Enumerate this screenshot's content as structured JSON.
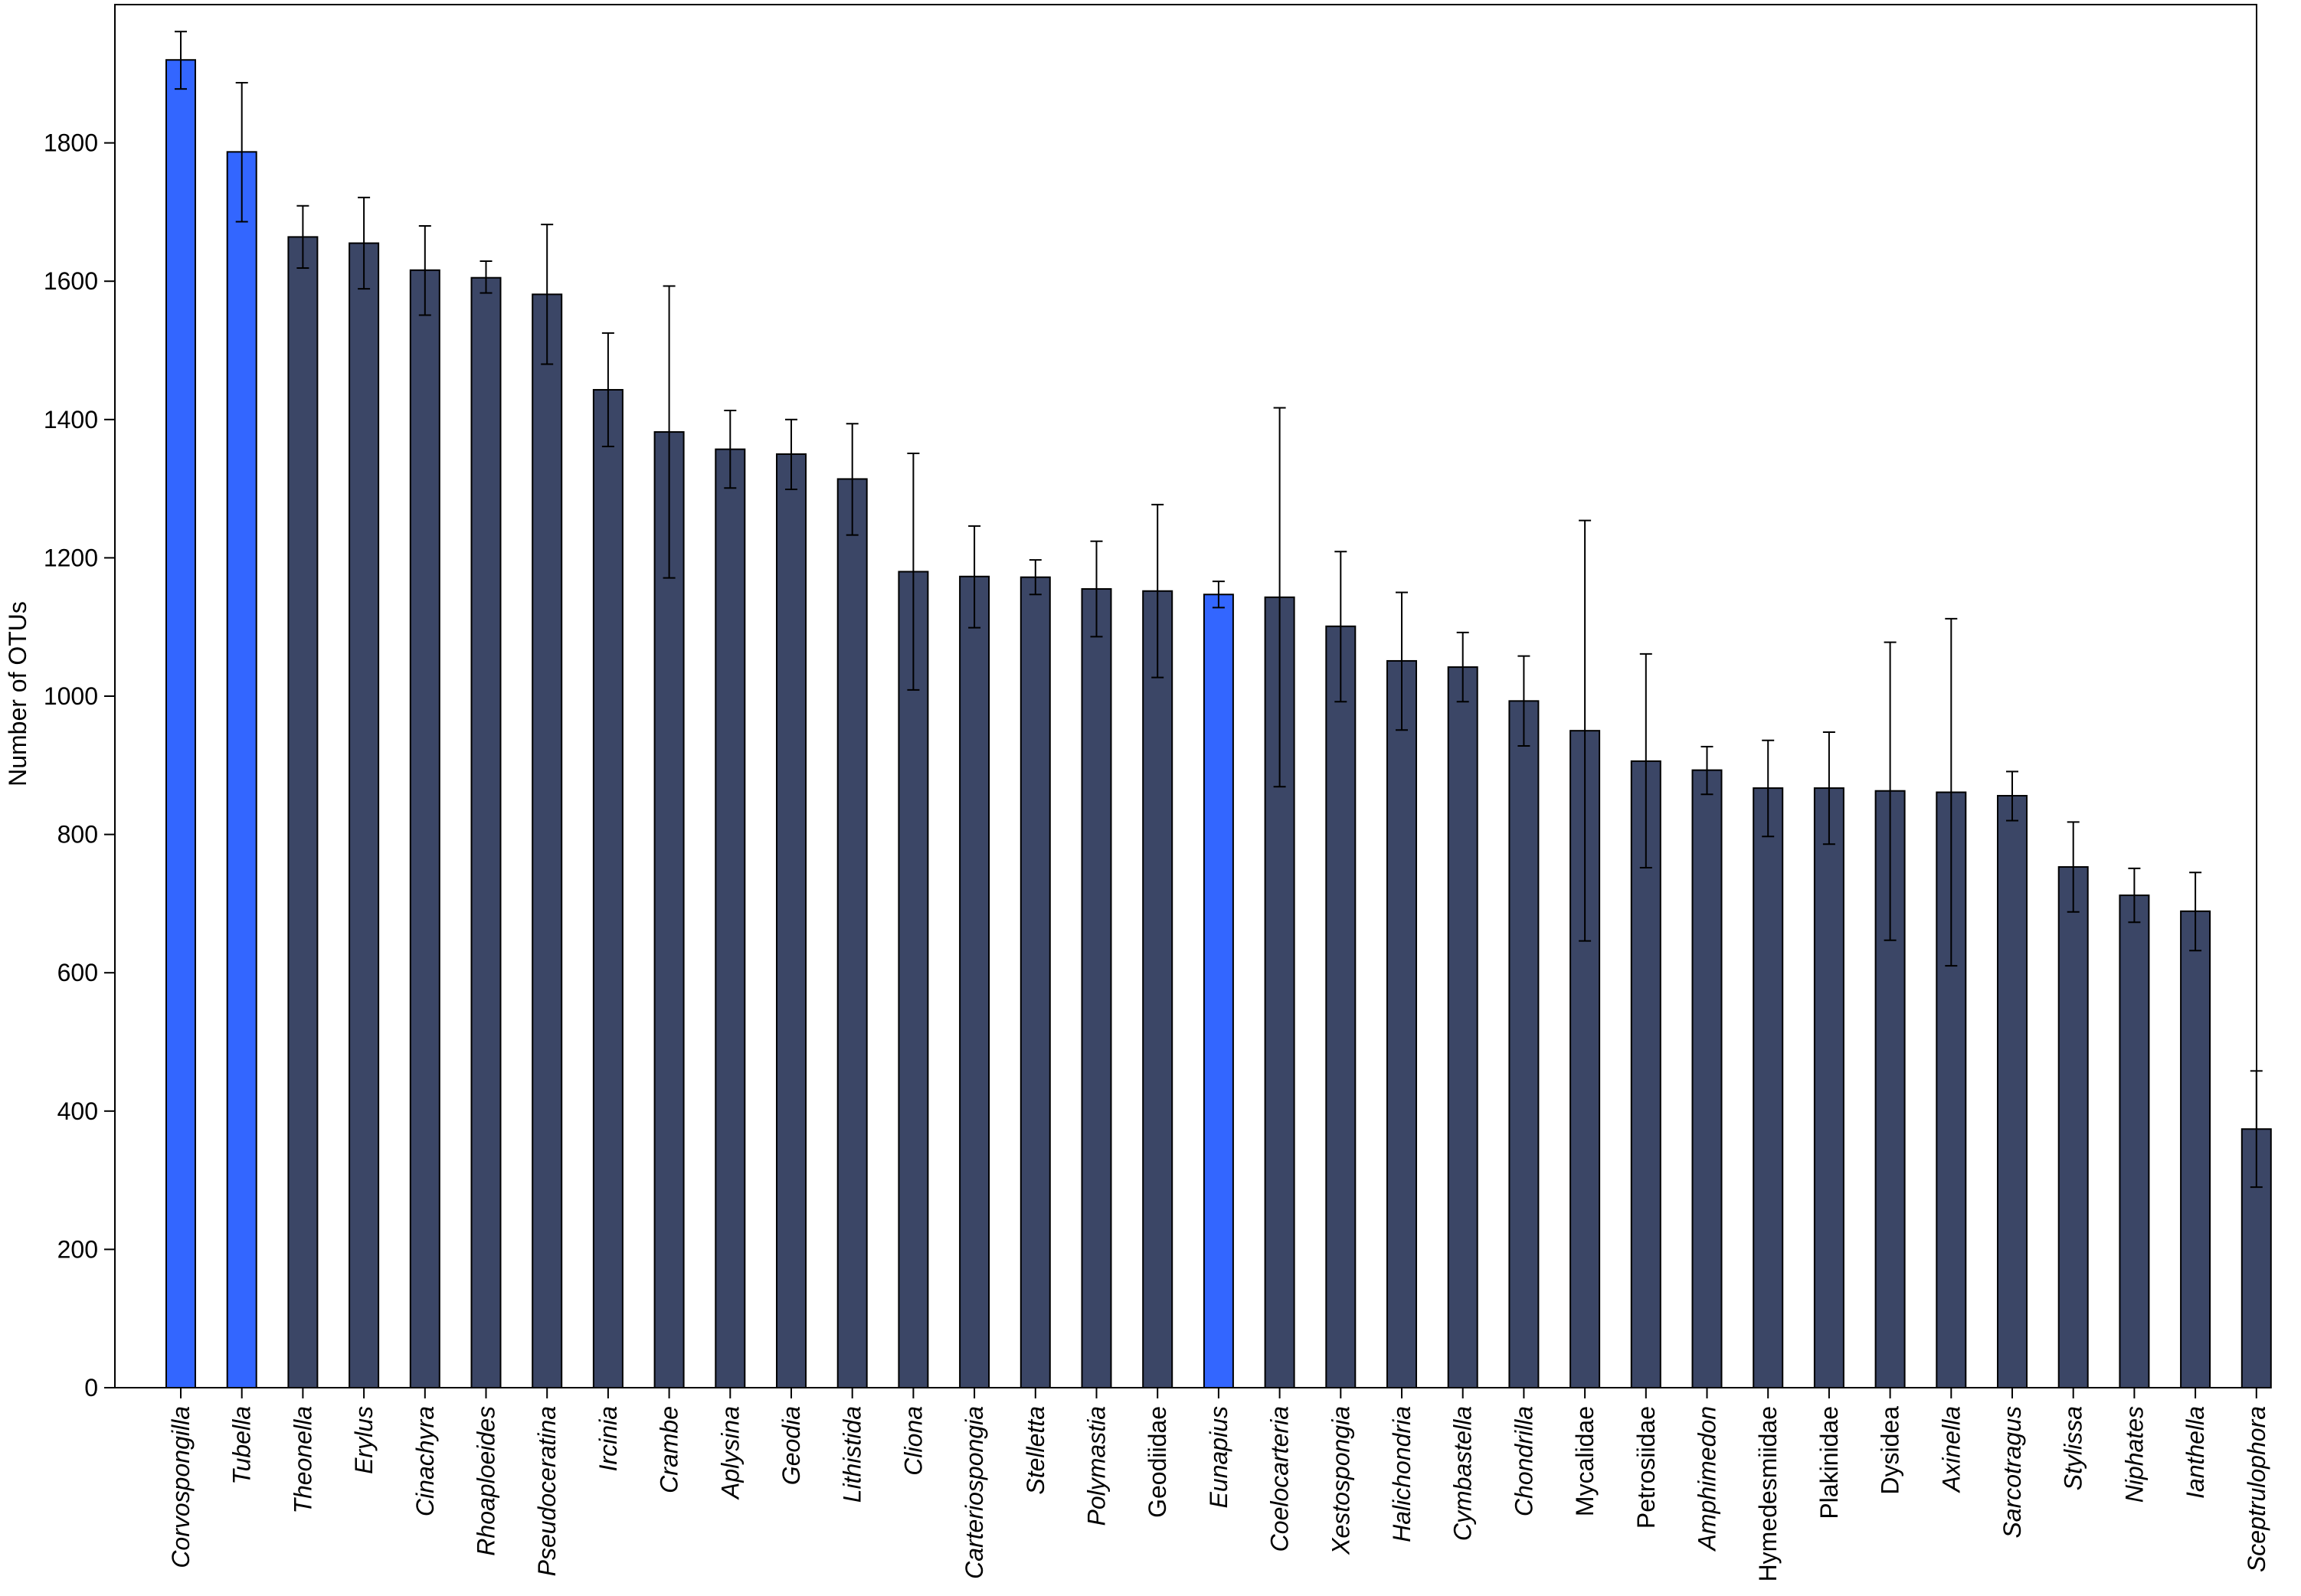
{
  "chart_data": {
    "type": "bar",
    "xlabel": "",
    "ylabel": "Number  of OTUs",
    "ylim": [
      0,
      2000
    ],
    "yticks": [
      0,
      200,
      400,
      600,
      800,
      1000,
      1200,
      1400,
      1600,
      1800
    ],
    "grid": false,
    "legend": "none",
    "colors": {
      "default": "#3b4666",
      "highlight": "#3366ff",
      "stroke": "#000000"
    },
    "categories": [
      "Corvospongilla",
      "Tubella",
      "Theonella",
      "Erylus",
      "Cinachyra",
      "Rhoaploeides",
      "Pseudoceratina",
      "Ircinia",
      "Crambe",
      "Aplysina",
      "Geodia",
      "Lithistida",
      "Cliona",
      "Carteriospongia",
      "Stelletta",
      "Polymastia",
      "Geodiidae",
      "Eunapius",
      "Coelocarteria",
      "Xestospongia",
      "Halichondria",
      "Cymbastella",
      "Chondrilla",
      "Mycalidae",
      "Petrosiidae",
      "Amphimedon",
      "Hymedesmiidae",
      "Plakinidae",
      "Dysidea",
      "Axinella",
      "Sarcotragus",
      "Stylissa",
      "Niphates",
      "Ianthella",
      "Sceptrulophora"
    ],
    "italic": [
      true,
      true,
      true,
      true,
      true,
      true,
      true,
      true,
      true,
      true,
      true,
      true,
      true,
      true,
      true,
      true,
      false,
      true,
      true,
      true,
      true,
      true,
      true,
      false,
      false,
      true,
      false,
      false,
      false,
      true,
      true,
      true,
      true,
      true,
      true
    ],
    "highlight": [
      true,
      true,
      false,
      false,
      false,
      false,
      false,
      false,
      false,
      false,
      false,
      false,
      false,
      false,
      false,
      false,
      false,
      true,
      false,
      false,
      false,
      false,
      false,
      false,
      false,
      false,
      false,
      false,
      false,
      false,
      false,
      false,
      false,
      false,
      false
    ],
    "series": [
      {
        "values": [
          1920,
          1787,
          1664,
          1655,
          1616,
          1605,
          1581,
          1443,
          1382,
          1357,
          1350,
          1314,
          1180,
          1173,
          1172,
          1155,
          1152,
          1147,
          1143,
          1101,
          1051,
          1042,
          993,
          950,
          906,
          893,
          867,
          867,
          863,
          861,
          856,
          753,
          712,
          689,
          374
        ],
        "err_low": [
          1878,
          1686,
          1619,
          1589,
          1551,
          1583,
          1480,
          1361,
          1171,
          1301,
          1299,
          1233,
          1009,
          1099,
          1147,
          1086,
          1027,
          1128,
          869,
          992,
          951,
          992,
          928,
          646,
          752,
          858,
          797,
          786,
          647,
          610,
          820,
          688,
          673,
          632,
          290
        ],
        "err_high": [
          1961,
          1887,
          1709,
          1721,
          1680,
          1629,
          1682,
          1525,
          1593,
          1413,
          1400,
          1394,
          1351,
          1246,
          1197,
          1224,
          1277,
          1166,
          1417,
          1209,
          1150,
          1092,
          1058,
          1254,
          1061,
          927,
          936,
          948,
          1078,
          1112,
          891,
          818,
          751,
          745,
          458
        ]
      }
    ]
  }
}
